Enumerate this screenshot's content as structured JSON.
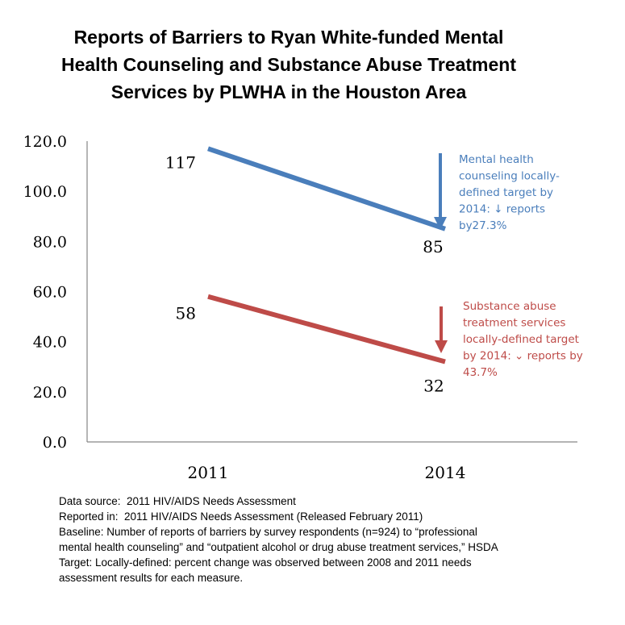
{
  "chart_data": {
    "type": "line",
    "title_lines": [
      "Reports of Barriers to Ryan White-funded Mental",
      "Health Counseling and Substance Abuse Treatment",
      "Services by PLWHA in the Houston Area"
    ],
    "categories": [
      "2011",
      "2014"
    ],
    "ylim": [
      0,
      120
    ],
    "yticks": [
      "0.0",
      "20.0",
      "40.0",
      "60.0",
      "80.0",
      "100.0",
      "120.0"
    ],
    "grid": false,
    "series": [
      {
        "values": [
          117,
          85
        ],
        "labels": [
          "117",
          "85"
        ],
        "color": "#4a7ebb"
      },
      {
        "values": [
          58,
          32
        ],
        "labels": [
          "58",
          "32"
        ],
        "color": "#be4b48"
      }
    ],
    "annotations": [
      {
        "lines": [
          "Mental health",
          "counseling locally-",
          "defined target by",
          "2014: ↓ reports",
          "by27.3%"
        ],
        "color": "#4a7ebb"
      },
      {
        "lines": [
          "Substance abuse",
          "treatment services",
          "locally-defined target",
          "by 2014: ⌄ reports by",
          "43.7%"
        ],
        "color": "#be4b48"
      }
    ]
  },
  "footer": {
    "lines": [
      "Data source:  2011 HIV/AIDS Needs Assessment",
      "Reported in:  2011 HIV/AIDS Needs Assessment (Released February 2011)",
      "Baseline: Number of reports of barriers by survey respondents (n=924) to “professional",
      "mental health counseling” and “outpatient alcohol or drug abuse treatment services,” HSDA",
      "Target: Locally-defined: percent change was observed between 2008 and 2011 needs",
      "assessment results for each measure."
    ]
  }
}
